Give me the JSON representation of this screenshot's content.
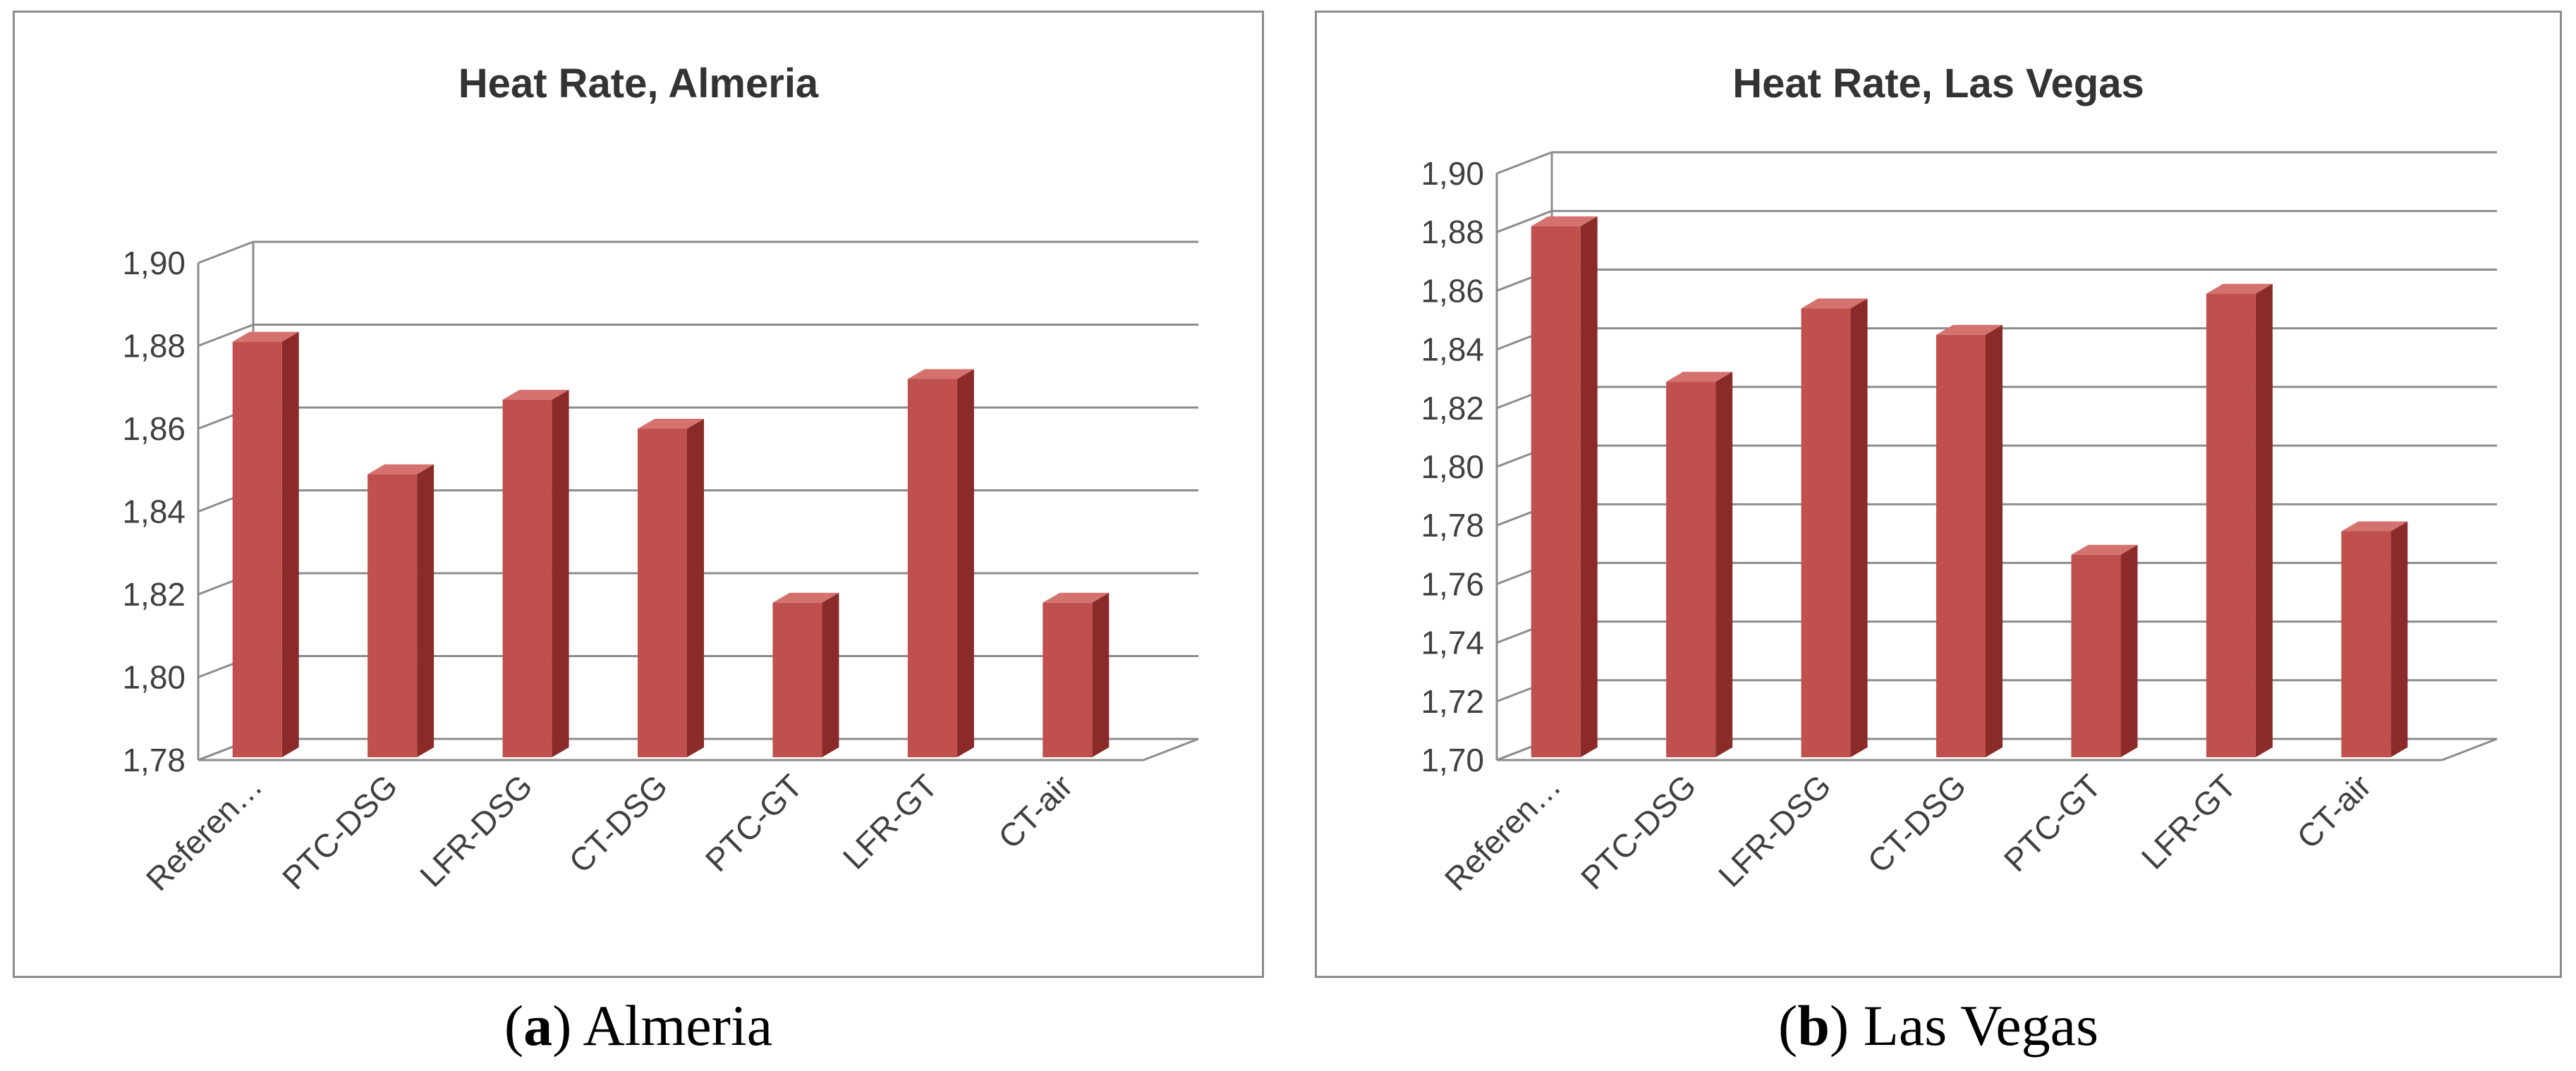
{
  "colors": {
    "bar_front": "#c0504d",
    "bar_side": "#8b2b29",
    "bar_top": "#d4726f",
    "grid": "#8c8c8c",
    "axis": "#8c8c8c"
  },
  "captions": [
    {
      "letter": "a",
      "label": "Almeria"
    },
    {
      "letter": "b",
      "label": "Las Vegas"
    }
  ],
  "chart_data": [
    {
      "type": "bar",
      "title": "Heat Rate, Almeria",
      "xlabel": "",
      "ylabel": "",
      "categories": [
        "Referen…",
        "PTC-DSG",
        "LFR-DSG",
        "CT-DSG",
        "PTC-GT",
        "LFR-GT",
        "CT-air"
      ],
      "values": [
        1.881,
        1.849,
        1.867,
        1.86,
        1.818,
        1.872,
        1.818
      ],
      "ylim": [
        1.78,
        1.9
      ],
      "yticks": [
        1.78,
        1.8,
        1.82,
        1.84,
        1.86,
        1.88,
        1.9
      ],
      "ytick_labels": [
        "1,78",
        "1,80",
        "1,82",
        "1,84",
        "1,86",
        "1,88",
        "1,90"
      ],
      "grid": true,
      "style": "3d-column"
    },
    {
      "type": "bar",
      "title": "Heat Rate, Las Vegas",
      "xlabel": "",
      "ylabel": "",
      "categories": [
        "Referen…",
        "PTC-DSG",
        "LFR-DSG",
        "CT-DSG",
        "PTC-GT",
        "LFR-GT",
        "CT-air"
      ],
      "values": [
        1.882,
        1.829,
        1.854,
        1.845,
        1.77,
        1.859,
        1.778
      ],
      "ylim": [
        1.7,
        1.9
      ],
      "yticks": [
        1.7,
        1.72,
        1.74,
        1.76,
        1.78,
        1.8,
        1.82,
        1.84,
        1.86,
        1.88,
        1.9
      ],
      "ytick_labels": [
        "1,70",
        "1,72",
        "1,74",
        "1,76",
        "1,78",
        "1,80",
        "1,82",
        "1,84",
        "1,86",
        "1,88",
        "1,90"
      ],
      "grid": true,
      "style": "3d-column"
    }
  ]
}
